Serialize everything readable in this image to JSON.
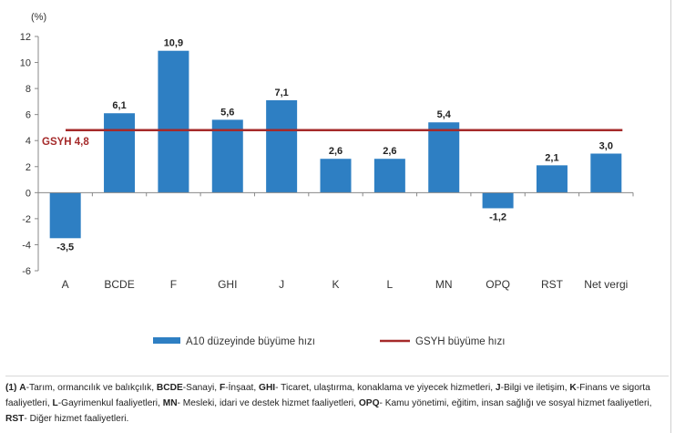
{
  "chart_data": {
    "type": "bar",
    "unit_label": "(%)",
    "categories": [
      "A",
      "BCDE",
      "F",
      "GHI",
      "J",
      "K",
      "L",
      "MN",
      "OPQ",
      "RST",
      "Net vergi"
    ],
    "series": [
      {
        "name": "A10 düzeyinde büyüme hızı",
        "color": "#2e7fc3",
        "values": [
          -3.5,
          6.1,
          10.9,
          5.6,
          7.1,
          2.6,
          2.6,
          5.4,
          -1.2,
          2.1,
          3.0
        ],
        "data_labels": [
          "-3,5",
          "6,1",
          "10,9",
          "5,6",
          "7,1",
          "2,6",
          "2,6",
          "5,4",
          "-1,2",
          "2,1",
          "3,0"
        ]
      }
    ],
    "reference_line": {
      "name": "GSYH büyüme hızı",
      "value": 4.8,
      "label": "GSYH 4,8",
      "color": "#a52a2a"
    },
    "yticks": [
      "12",
      "10",
      "8",
      "6",
      "4",
      "2",
      "0",
      "-2",
      "-4",
      "-6"
    ],
    "ytick_values": [
      12,
      10,
      8,
      6,
      4,
      2,
      0,
      -2,
      -4,
      -6
    ],
    "ylim": [
      -6,
      12
    ],
    "grid": false,
    "legend_position": "bottom"
  },
  "footnote": {
    "marker": "(1)",
    "items": [
      {
        "code": "A",
        "text": "-Tarım, ormancılık ve balıkçılık, "
      },
      {
        "code": "BCDE",
        "text": "-Sanayi, "
      },
      {
        "code": "F",
        "text": "-İnşaat, "
      },
      {
        "code": "GHI",
        "text": "- Ticaret, ulaştırma, konaklama ve yiyecek hizmetleri, "
      },
      {
        "code": "J",
        "text": "-Bilgi ve iletişim, "
      },
      {
        "code": "K",
        "text": "-Finans ve sigorta faaliyetleri, "
      },
      {
        "code": "L",
        "text": "-Gayrimenkul faaliyetleri, "
      },
      {
        "code": "MN",
        "text": "- Mesleki, idari ve destek hizmet faaliyetleri, "
      },
      {
        "code": "OPQ",
        "text": "- Kamu yönetimi, eğitim, insan sağlığı ve sosyal hizmet faaliyetleri, "
      },
      {
        "code": "RST",
        "text": "- Diğer hizmet faaliyetleri."
      }
    ]
  }
}
